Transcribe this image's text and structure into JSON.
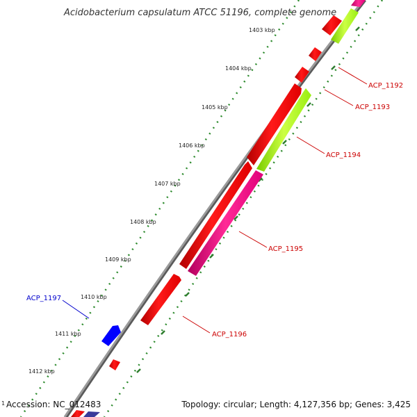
{
  "title": "Acidobacterium capsulatum ATCC 51196, complete genome",
  "footer": {
    "accession": "Accession: NC_012483",
    "summary": "Topology: circular; Length: 4,127,356 bp; Genes: 3,425",
    "left_mark": "1"
  },
  "colors": {
    "backbone": "#8a8a8a",
    "tick_dot": "#2e8b2e",
    "tick_major": "#2e7d2e",
    "gene_red": "#ff0000",
    "gene_green": "#aaff22",
    "gene_magenta": "#ff1a8c",
    "gene_blue": "#0000ff",
    "label_red": "#cc0000",
    "label_blue": "#0000cc"
  },
  "scale_labels": [
    "1403 kbp",
    "1404 kbp",
    "1405 kbp",
    "1406 kbp",
    "1407 kbp",
    "1408 kbp",
    "1409 kbp",
    "1410 kbp",
    "1411 kbp",
    "1412 kbp"
  ],
  "gene_labels": [
    {
      "id": "ACP_1192",
      "color": "red"
    },
    {
      "id": "ACP_1193",
      "color": "red"
    },
    {
      "id": "ACP_1194",
      "color": "red"
    },
    {
      "id": "ACP_1195",
      "color": "red"
    },
    {
      "id": "ACP_1196",
      "color": "red"
    },
    {
      "id": "ACP_1197",
      "color": "blue"
    }
  ]
}
